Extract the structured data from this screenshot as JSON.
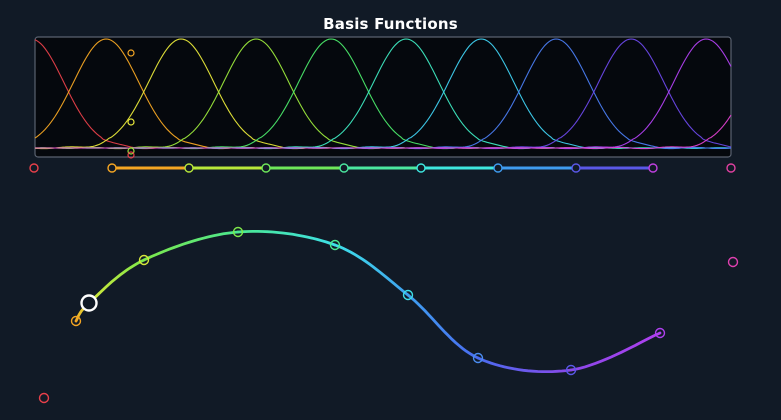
{
  "title": "Basis Functions",
  "basis_colors": [
    "#e8404a",
    "#f5a623",
    "#e8e83a",
    "#9be83c",
    "#4be86a",
    "#3ee8c0",
    "#3fd0f0",
    "#4a7cf0",
    "#6a48e8",
    "#b040f0",
    "#e040d0"
  ],
  "knot_colors": [
    "#e8404a",
    "#f5a623",
    "#b8e83a",
    "#6ee85a",
    "#4be8a0",
    "#3ee8e0",
    "#3f9cf0",
    "#5a58e8",
    "#c040e0",
    "#e040a0"
  ],
  "curve_point_colors": [
    "#f5a623",
    "#d8e83a",
    "#7ee84a",
    "#4be890",
    "#3ee0e8",
    "#4a8cf0",
    "#5a58e8",
    "#b040f0",
    "#e040b0",
    "#e8404a"
  ],
  "playhead_color": "#ffffff",
  "playhead_param": 0.145
}
